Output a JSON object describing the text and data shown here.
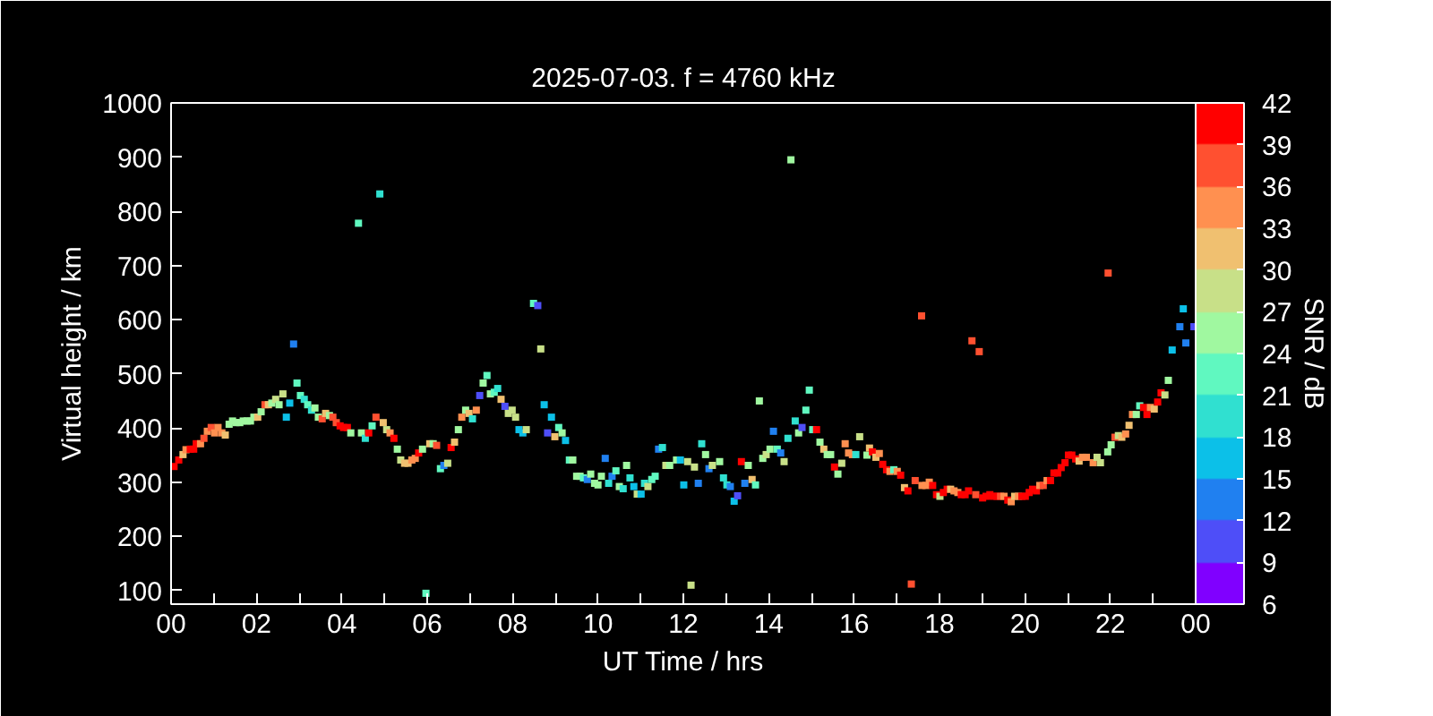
{
  "chart_data": {
    "type": "scatter",
    "title": "2025-07-03. f = 4760 kHz",
    "xlabel": "UT Time / hrs",
    "ylabel": "Virtual height / km",
    "clabel": "SNR / dB",
    "marker": "square",
    "grid": false,
    "xlim": [
      0,
      24
    ],
    "ylim": [
      75,
      1000
    ],
    "xticks": [
      {
        "value": 0,
        "label": "00"
      },
      {
        "value": 1,
        "label": null
      },
      {
        "value": 2,
        "label": "02"
      },
      {
        "value": 3,
        "label": null
      },
      {
        "value": 4,
        "label": "04"
      },
      {
        "value": 5,
        "label": null
      },
      {
        "value": 6,
        "label": "06"
      },
      {
        "value": 7,
        "label": null
      },
      {
        "value": 8,
        "label": "08"
      },
      {
        "value": 9,
        "label": null
      },
      {
        "value": 10,
        "label": "10"
      },
      {
        "value": 11,
        "label": null
      },
      {
        "value": 12,
        "label": "12"
      },
      {
        "value": 13,
        "label": null
      },
      {
        "value": 14,
        "label": "14"
      },
      {
        "value": 15,
        "label": null
      },
      {
        "value": 16,
        "label": "16"
      },
      {
        "value": 17,
        "label": null
      },
      {
        "value": 18,
        "label": "18"
      },
      {
        "value": 19,
        "label": null
      },
      {
        "value": 20,
        "label": "20"
      },
      {
        "value": 21,
        "label": null
      },
      {
        "value": 22,
        "label": "22"
      },
      {
        "value": 23,
        "label": null
      },
      {
        "value": 24,
        "label": "00"
      }
    ],
    "yticks": [
      100,
      200,
      300,
      400,
      500,
      600,
      700,
      800,
      900,
      1000
    ],
    "clim": [
      6,
      42
    ],
    "cticks": [
      6,
      9,
      12,
      15,
      18,
      21,
      24,
      27,
      30,
      33,
      36,
      39,
      42
    ],
    "x": [
      0.07,
      0.18,
      0.28,
      0.35,
      0.45,
      0.53,
      0.59,
      0.69,
      0.77,
      0.85,
      0.94,
      1.02,
      1.1,
      1.19,
      1.27,
      1.36,
      1.44,
      1.52,
      1.61,
      1.69,
      1.78,
      1.86,
      1.94,
      2.03,
      2.11,
      2.2,
      2.28,
      2.36,
      2.45,
      2.53,
      2.62,
      2.7,
      2.78,
      2.87,
      2.95,
      3.03,
      3.12,
      3.2,
      3.29,
      3.37,
      3.45,
      3.54,
      3.62,
      3.71,
      3.79,
      3.87,
      3.96,
      4.04,
      4.13,
      4.21,
      4.39,
      4.46,
      4.55,
      4.63,
      4.71,
      4.8,
      4.89,
      4.97,
      5.05,
      5.13,
      5.22,
      5.3,
      5.38,
      5.47,
      5.55,
      5.64,
      5.72,
      5.8,
      5.89,
      5.97,
      6.06,
      6.14,
      6.22,
      6.31,
      6.39,
      6.48,
      6.56,
      6.64,
      6.73,
      6.81,
      6.9,
      6.98,
      7.06,
      7.15,
      7.23,
      7.31,
      7.4,
      7.48,
      7.57,
      7.65,
      7.73,
      7.82,
      7.9,
      7.99,
      8.07,
      8.15,
      8.24,
      8.32,
      8.49,
      8.59,
      8.66,
      8.74,
      8.82,
      8.91,
      8.99,
      9.08,
      9.16,
      9.24,
      9.33,
      9.41,
      9.5,
      9.58,
      9.66,
      9.75,
      9.83,
      9.92,
      10.0,
      10.08,
      10.17,
      10.25,
      10.33,
      10.42,
      10.5,
      10.59,
      10.67,
      10.75,
      10.84,
      10.92,
      11.01,
      11.09,
      11.17,
      11.26,
      11.34,
      11.42,
      11.51,
      11.59,
      11.68,
      11.84,
      11.93,
      12.01,
      12.1,
      12.18,
      12.26,
      12.35,
      12.43,
      12.52,
      12.6,
      12.68,
      12.85,
      12.94,
      13.02,
      13.1,
      13.19,
      13.27,
      13.36,
      13.44,
      13.52,
      13.61,
      13.69,
      13.78,
      13.86,
      13.94,
      14.03,
      14.11,
      14.2,
      14.28,
      14.36,
      14.45,
      14.52,
      14.62,
      14.7,
      14.78,
      14.87,
      14.95,
      15.03,
      15.12,
      15.2,
      15.29,
      15.37,
      15.45,
      15.54,
      15.62,
      15.71,
      15.79,
      15.87,
      15.96,
      16.04,
      16.13,
      16.3,
      16.36,
      16.43,
      16.51,
      16.59,
      16.67,
      16.76,
      16.84,
      16.93,
      17.01,
      17.09,
      17.18,
      17.26,
      17.34,
      17.43,
      17.58,
      17.59,
      17.68,
      17.76,
      17.84,
      17.93,
      18.01,
      18.09,
      18.18,
      18.26,
      18.34,
      18.43,
      18.51,
      18.6,
      18.68,
      18.76,
      18.85,
      18.93,
      19.01,
      19.09,
      19.18,
      19.26,
      19.35,
      19.43,
      19.51,
      19.6,
      19.68,
      19.76,
      19.85,
      19.93,
      20.01,
      20.1,
      20.18,
      20.27,
      20.35,
      20.43,
      20.52,
      20.6,
      20.68,
      20.77,
      20.85,
      20.94,
      21.02,
      21.1,
      21.19,
      21.27,
      21.35,
      21.44,
      21.6,
      21.69,
      21.77,
      21.94,
      21.95,
      22.02,
      22.11,
      22.19,
      22.27,
      22.36,
      22.44,
      22.52,
      22.61,
      22.69,
      22.78,
      22.86,
      22.94,
      23.03,
      23.11,
      23.19,
      23.28,
      23.36,
      23.45,
      23.63,
      23.71,
      23.77,
      23.96
    ],
    "values": [
      329,
      341,
      351,
      360,
      361,
      361,
      371,
      371,
      381,
      394,
      401,
      391,
      401,
      391,
      387,
      407,
      413,
      410,
      410,
      413,
      413,
      413,
      420,
      420,
      430,
      443,
      443,
      446,
      453,
      443,
      463,
      420,
      446,
      555,
      483,
      460,
      453,
      443,
      433,
      437,
      420,
      417,
      427,
      423,
      420,
      410,
      404,
      401,
      401,
      391,
      778,
      391,
      381,
      391,
      404,
      420,
      832,
      410,
      397,
      391,
      381,
      361,
      341,
      335,
      335,
      341,
      344,
      354,
      361,
      95,
      371,
      371,
      368,
      325,
      331,
      335,
      364,
      374,
      397,
      420,
      433,
      427,
      417,
      433,
      460,
      483,
      497,
      463,
      466,
      473,
      453,
      440,
      427,
      433,
      420,
      397,
      391,
      397,
      630,
      626,
      546,
      443,
      391,
      420,
      384,
      401,
      391,
      377,
      341,
      341,
      311,
      311,
      308,
      305,
      315,
      298,
      295,
      311,
      344,
      298,
      311,
      321,
      292,
      288,
      331,
      308,
      292,
      278,
      278,
      298,
      292,
      305,
      311,
      361,
      364,
      331,
      331,
      341,
      341,
      295,
      338,
      110,
      328,
      298,
      371,
      351,
      325,
      331,
      338,
      308,
      295,
      292,
      265,
      275,
      338,
      298,
      331,
      305,
      295,
      450,
      344,
      351,
      361,
      394,
      361,
      354,
      338,
      381,
      895,
      413,
      391,
      401,
      433,
      470,
      397,
      397,
      374,
      361,
      351,
      351,
      328,
      315,
      335,
      371,
      354,
      351,
      351,
      384,
      350,
      363,
      356,
      346,
      353,
      333,
      323,
      320,
      323,
      320,
      313,
      290,
      284,
      112,
      303,
      607,
      294,
      294,
      300,
      294,
      277,
      274,
      281,
      287,
      287,
      284,
      281,
      277,
      277,
      284,
      561,
      277,
      541,
      271,
      274,
      277,
      274,
      274,
      274,
      274,
      267,
      264,
      274,
      274,
      274,
      274,
      281,
      287,
      284,
      294,
      294,
      303,
      303,
      317,
      317,
      327,
      336,
      350,
      350,
      343,
      339,
      346,
      346,
      336,
      346,
      336,
      356,
      686,
      369,
      383,
      386,
      383,
      389,
      405,
      425,
      425,
      441,
      438,
      425,
      438,
      435,
      448,
      465,
      461,
      488,
      544,
      587,
      620,
      557,
      587
    ],
    "cvalues": [
      40.5,
      40.5,
      31.5,
      34.5,
      40.5,
      40.5,
      40.5,
      34.5,
      37.5,
      34.5,
      37.5,
      34.5,
      34.5,
      34.5,
      31.5,
      25.5,
      25.5,
      25.5,
      25.5,
      25.5,
      25.5,
      25.5,
      25.5,
      31.5,
      25.5,
      37.5,
      31.5,
      25.5,
      28.5,
      25.5,
      28.5,
      16.5,
      16.5,
      13.5,
      22.5,
      22.5,
      19.5,
      22.5,
      19.5,
      25.5,
      25.5,
      37.5,
      31.5,
      25.5,
      37.5,
      37.5,
      40.5,
      40.5,
      40.5,
      25.5,
      22.5,
      25.5,
      19.5,
      40.5,
      22.5,
      37.5,
      19.5,
      31.5,
      28.5,
      34.5,
      40.5,
      25.5,
      28.5,
      31.5,
      31.5,
      34.5,
      34.5,
      40.5,
      25.5,
      22.5,
      31.5,
      25.5,
      37.5,
      22.5,
      13.5,
      28.5,
      40.5,
      31.5,
      25.5,
      34.5,
      25.5,
      31.5,
      19.5,
      34.5,
      10.5,
      25.5,
      22.5,
      25.5,
      22.5,
      19.5,
      31.5,
      10.5,
      28.5,
      28.5,
      28.5,
      16.5,
      16.5,
      28.5,
      22.5,
      10.5,
      28.5,
      16.5,
      10.5,
      16.5,
      31.5,
      22.5,
      25.5,
      16.5,
      22.5,
      25.5,
      25.5,
      25.5,
      22.5,
      13.5,
      25.5,
      25.5,
      25.5,
      25.5,
      13.5,
      19.5,
      13.5,
      22.5,
      25.5,
      19.5,
      25.5,
      19.5,
      16.5,
      28.5,
      16.5,
      19.5,
      28.5,
      22.5,
      22.5,
      13.5,
      19.5,
      28.5,
      25.5,
      25.5,
      16.5,
      16.5,
      28.5,
      28.5,
      28.5,
      13.5,
      19.5,
      25.5,
      13.5,
      28.5,
      25.5,
      19.5,
      19.5,
      13.5,
      16.5,
      10.5,
      40.5,
      13.5,
      25.5,
      31.5,
      22.5,
      25.5,
      25.5,
      28.5,
      25.5,
      13.5,
      22.5,
      13.5,
      28.5,
      19.5,
      25.5,
      19.5,
      25.5,
      10.5,
      22.5,
      22.5,
      22.5,
      40.5,
      25.5,
      31.5,
      25.5,
      25.5,
      40.5,
      25.5,
      28.5,
      34.5,
      34.5,
      34.5,
      19.5,
      28.5,
      25.5,
      31.5,
      40.5,
      31.5,
      34.5,
      40.5,
      40.5,
      34.5,
      22.5,
      34.5,
      40.5,
      31.5,
      40.5,
      37.5,
      37.5,
      37.5,
      34.5,
      34.5,
      34.5,
      40.5,
      40.5,
      28.5,
      40.5,
      40.5,
      31.5,
      34.5,
      34.5,
      40.5,
      40.5,
      40.5,
      37.5,
      37.5,
      37.5,
      40.5,
      40.5,
      40.5,
      40.5,
      40.5,
      37.5,
      34.5,
      40.5,
      34.5,
      31.5,
      34.5,
      40.5,
      40.5,
      40.5,
      40.5,
      40.5,
      34.5,
      37.5,
      34.5,
      40.5,
      40.5,
      40.5,
      40.5,
      40.5,
      40.5,
      40.5,
      40.5,
      31.5,
      34.5,
      34.5,
      34.5,
      28.5,
      28.5,
      25.5,
      37.5,
      25.5,
      37.5,
      28.5,
      31.5,
      34.5,
      31.5,
      34.5,
      25.5,
      22.5,
      40.5,
      40.5,
      34.5,
      31.5,
      40.5,
      40.5,
      28.5,
      25.5,
      16.5,
      13.5,
      16.5,
      13.5,
      10.5
    ]
  }
}
